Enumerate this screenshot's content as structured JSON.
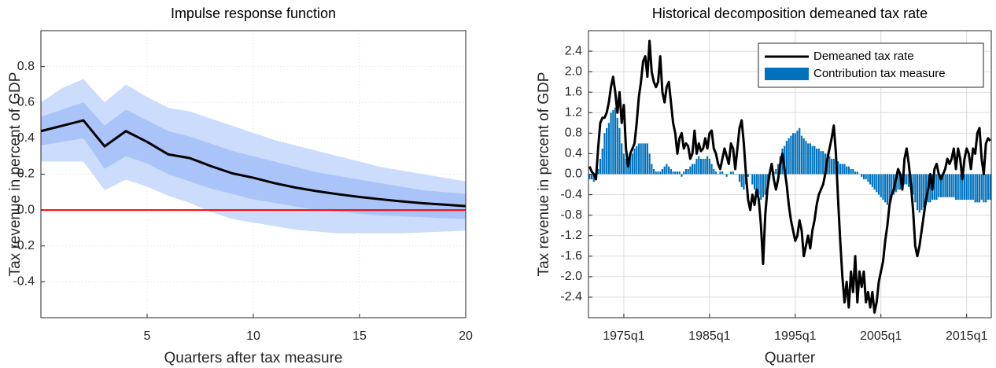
{
  "chart_data": [
    {
      "type": "line",
      "title": "Impulse response function",
      "x_label": "Quarters after tax measure",
      "y_label": "Tax revenue in percent of GDP",
      "x": [
        0,
        1,
        2,
        3,
        4,
        5,
        6,
        7,
        8,
        9,
        10,
        11,
        12,
        13,
        14,
        15,
        16,
        17,
        18,
        19,
        20
      ],
      "series": [
        {
          "color": "#000000",
          "values": [
            0.44,
            0.47,
            0.5,
            0.355,
            0.44,
            0.38,
            0.31,
            0.29,
            0.245,
            0.205,
            0.18,
            0.15,
            0.125,
            0.105,
            0.088,
            0.073,
            0.06,
            0.048,
            0.038,
            0.03,
            0.022
          ]
        }
      ],
      "bands": [
        {
          "color": "#cbdcfc",
          "upper": [
            0.6,
            0.68,
            0.73,
            0.6,
            0.7,
            0.63,
            0.57,
            0.55,
            0.51,
            0.47,
            0.43,
            0.39,
            0.36,
            0.33,
            0.3,
            0.27,
            0.24,
            0.22,
            0.2,
            0.18,
            0.16
          ],
          "lower": [
            0.27,
            0.27,
            0.27,
            0.11,
            0.17,
            0.13,
            0.08,
            0.04,
            -0.01,
            -0.05,
            -0.07,
            -0.09,
            -0.11,
            -0.12,
            -0.13,
            -0.13,
            -0.13,
            -0.13,
            -0.125,
            -0.12,
            -0.115
          ]
        },
        {
          "color": "#aac4f9",
          "upper": [
            0.52,
            0.56,
            0.6,
            0.47,
            0.56,
            0.5,
            0.44,
            0.41,
            0.37,
            0.33,
            0.3,
            0.27,
            0.24,
            0.21,
            0.19,
            0.17,
            0.15,
            0.13,
            0.11,
            0.1,
            0.09
          ],
          "lower": [
            0.36,
            0.38,
            0.4,
            0.23,
            0.3,
            0.26,
            0.2,
            0.16,
            0.12,
            0.09,
            0.06,
            0.04,
            0.02,
            0.0,
            -0.01,
            -0.02,
            -0.03,
            -0.035,
            -0.04,
            -0.045,
            -0.05
          ]
        }
      ],
      "reference_line": {
        "value": 0,
        "color": "#ff0000"
      },
      "xlim": [
        0,
        20
      ],
      "xticks": [
        5,
        10,
        15,
        20
      ],
      "ylim": [
        -0.6,
        1.0
      ],
      "yticks": [
        -0.4,
        -0.2,
        {
          "value": 0,
          "label": "0.0"
        },
        0.2,
        0.4,
        0.6,
        0.8
      ],
      "grid": true,
      "grid_style": "dotted"
    },
    {
      "type": "bar",
      "title": "Historical decomposition demeaned tax rate",
      "x_label": "Quarter",
      "y_label": "Tax revenue in percent of GDP",
      "x": [
        "1971q1",
        "1971q2",
        "1971q3",
        "1971q4",
        "1972q1",
        "1972q2",
        "1972q3",
        "1972q4",
        "1973q1",
        "1973q2",
        "1973q3",
        "1973q4",
        "1974q1",
        "1974q2",
        "1974q3",
        "1974q4",
        "1975q1",
        "1975q2",
        "1975q3",
        "1975q4",
        "1976q1",
        "1976q2",
        "1976q3",
        "1976q4",
        "1977q1",
        "1977q2",
        "1977q3",
        "1977q4",
        "1978q1",
        "1978q2",
        "1978q3",
        "1978q4",
        "1979q1",
        "1979q2",
        "1979q3",
        "1979q4",
        "1980q1",
        "1980q2",
        "1980q3",
        "1980q4",
        "1981q1",
        "1981q2",
        "1981q3",
        "1981q4",
        "1982q1",
        "1982q2",
        "1982q3",
        "1982q4",
        "1983q1",
        "1983q2",
        "1983q3",
        "1983q4",
        "1984q1",
        "1984q2",
        "1984q3",
        "1984q4",
        "1985q1",
        "1985q2",
        "1985q3",
        "1985q4",
        "1986q1",
        "1986q2",
        "1986q3",
        "1986q4",
        "1987q1",
        "1987q2",
        "1987q3",
        "1987q4",
        "1988q1",
        "1988q2",
        "1988q3",
        "1988q4",
        "1989q1",
        "1989q2",
        "1989q3",
        "1989q4",
        "1990q1",
        "1990q2",
        "1990q3",
        "1990q4",
        "1991q1",
        "1991q2",
        "1991q3",
        "1991q4",
        "1992q1",
        "1992q2",
        "1992q3",
        "1992q4",
        "1993q1",
        "1993q2",
        "1993q3",
        "1993q4",
        "1994q1",
        "1994q2",
        "1994q3",
        "1994q4",
        "1995q1",
        "1995q2",
        "1995q3",
        "1995q4",
        "1996q1",
        "1996q2",
        "1996q3",
        "1996q4",
        "1997q1",
        "1997q2",
        "1997q3",
        "1997q4",
        "1998q1",
        "1998q2",
        "1998q3",
        "1998q4",
        "1999q1",
        "1999q2",
        "1999q3",
        "1999q4",
        "2000q1",
        "2000q2",
        "2000q3",
        "2000q4",
        "2001q1",
        "2001q2",
        "2001q3",
        "2001q4",
        "2002q1",
        "2002q2",
        "2002q3",
        "2002q4",
        "2003q1",
        "2003q2",
        "2003q3",
        "2003q4",
        "2004q1",
        "2004q2",
        "2004q3",
        "2004q4",
        "2005q1",
        "2005q2",
        "2005q3",
        "2005q4",
        "2006q1",
        "2006q2",
        "2006q3",
        "2006q4",
        "2007q1",
        "2007q2",
        "2007q3",
        "2007q4",
        "2008q1",
        "2008q2",
        "2008q3",
        "2008q4",
        "2009q1",
        "2009q2",
        "2009q3",
        "2009q4",
        "2010q1",
        "2010q2",
        "2010q3",
        "2010q4",
        "2011q1",
        "2011q2",
        "2011q3",
        "2011q4",
        "2012q1",
        "2012q2",
        "2012q3",
        "2012q4",
        "2013q1",
        "2013q2",
        "2013q3",
        "2013q4",
        "2014q1",
        "2014q2",
        "2014q3",
        "2014q4",
        "2015q1",
        "2015q2",
        "2015q3",
        "2015q4",
        "2016q1",
        "2016q2",
        "2016q3",
        "2016q4",
        "2017q1",
        "2017q2",
        "2017q3",
        "2017q4"
      ],
      "series": [
        {
          "name": "Contribution tax measure",
          "type": "bar",
          "color": "#0072bd",
          "values": [
            -0.1,
            -0.1,
            -0.15,
            -0.1,
            0.1,
            0.3,
            0.5,
            0.8,
            0.9,
            1.0,
            1.2,
            1.25,
            1.3,
            1.1,
            0.9,
            0.6,
            0.4,
            0.3,
            0.3,
            0.4,
            0.4,
            0.5,
            0.55,
            0.6,
            0.6,
            0.6,
            0.6,
            0.6,
            0.4,
            0.2,
            0.1,
            0.05,
            0.05,
            0.05,
            0.1,
            0.15,
            0.2,
            0.15,
            0.1,
            0.05,
            0.05,
            0.05,
            0.05,
            -0.05,
            0.05,
            0.1,
            0.1,
            0.15,
            0.2,
            0.2,
            0.3,
            0.35,
            0.3,
            0.3,
            0.3,
            0.35,
            0.3,
            0.2,
            0.1,
            0.05,
            0.0,
            0.05,
            0.05,
            0.0,
            -0.05,
            0.0,
            0.05,
            0.05,
            0.0,
            0.0,
            -0.15,
            -0.25,
            -0.3,
            -0.2,
            -0.05,
            0.0,
            -0.2,
            -0.3,
            -0.35,
            -0.4,
            -0.5,
            -0.45,
            -0.4,
            -0.3,
            -0.1,
            0.0,
            0.05,
            0.1,
            0.2,
            0.35,
            0.5,
            0.55,
            0.65,
            0.7,
            0.75,
            0.8,
            0.8,
            0.85,
            0.9,
            0.75,
            0.7,
            0.65,
            0.6,
            0.6,
            0.55,
            0.55,
            0.5,
            0.5,
            0.45,
            0.45,
            0.4,
            0.4,
            0.35,
            0.3,
            0.3,
            0.25,
            0.25,
            0.2,
            0.2,
            0.2,
            0.15,
            0.15,
            0.1,
            0.1,
            0.05,
            0.05,
            0.0,
            -0.05,
            -0.1,
            -0.1,
            -0.15,
            -0.2,
            -0.25,
            -0.3,
            -0.35,
            -0.4,
            -0.45,
            -0.5,
            -0.55,
            -0.6,
            -0.6,
            -0.45,
            -0.4,
            -0.35,
            -0.3,
            -0.3,
            -0.25,
            -0.2,
            -0.2,
            -0.25,
            -0.3,
            -0.4,
            -0.55,
            -0.7,
            -0.75,
            -0.7,
            -0.65,
            -0.6,
            -0.55,
            -0.55,
            -0.5,
            -0.5,
            -0.5,
            -0.45,
            -0.45,
            -0.45,
            -0.45,
            -0.45,
            -0.45,
            -0.45,
            -0.45,
            -0.5,
            -0.5,
            -0.5,
            -0.5,
            -0.5,
            -0.5,
            -0.5,
            -0.5,
            -0.5,
            -0.55,
            -0.55,
            -0.55,
            -0.5,
            -0.55,
            -0.55,
            -0.5,
            -0.5
          ]
        },
        {
          "name": "Demeaned tax rate",
          "type": "line",
          "color": "#000000",
          "values": [
            0.15,
            0.05,
            0.0,
            -0.1,
            0.5,
            1.0,
            1.1,
            1.1,
            1.2,
            1.4,
            1.7,
            1.9,
            1.6,
            1.2,
            1.6,
            1.0,
            1.35,
            0.5,
            0.15,
            0.4,
            0.5,
            0.6,
            1.0,
            1.5,
            1.8,
            2.2,
            2.3,
            1.9,
            2.6,
            2.0,
            1.8,
            1.7,
            1.8,
            2.3,
            1.6,
            1.4,
            1.7,
            1.8,
            1.4,
            1.0,
            0.8,
            0.4,
            0.7,
            0.8,
            0.5,
            0.6,
            0.55,
            0.3,
            0.4,
            0.85,
            0.4,
            0.6,
            0.45,
            0.5,
            0.7,
            0.5,
            0.8,
            0.85,
            0.5,
            0.4,
            0.2,
            0.1,
            0.3,
            0.5,
            0.35,
            0.2,
            0.6,
            0.5,
            0.1,
            0.5,
            0.9,
            1.05,
            0.6,
            0.0,
            -0.5,
            -0.7,
            -0.4,
            -0.6,
            -0.3,
            -0.5,
            -1.0,
            -1.75,
            -0.8,
            -0.3,
            0.0,
            0.2,
            -0.1,
            -0.3,
            -0.1,
            0.2,
            0.4,
            0.1,
            -0.2,
            -0.6,
            -0.9,
            -1.1,
            -1.3,
            -1.2,
            -0.9,
            -1.1,
            -1.6,
            -1.4,
            -1.2,
            -1.45,
            -1.1,
            -0.9,
            -0.6,
            -0.4,
            -0.3,
            -0.2,
            0.0,
            0.3,
            0.5,
            0.7,
            0.95,
            0.4,
            -0.5,
            -1.3,
            -2.0,
            -2.5,
            -2.1,
            -2.6,
            -1.9,
            -2.3,
            -1.6,
            -2.5,
            -1.9,
            -2.2,
            -1.9,
            -2.5,
            -2.3,
            -2.6,
            -2.3,
            -2.7,
            -2.5,
            -2.1,
            -1.9,
            -1.7,
            -1.3,
            -1.0,
            -0.6,
            -0.4,
            -0.3,
            -0.1,
            0.1,
            0.0,
            -0.3,
            0.3,
            0.5,
            0.2,
            -0.2,
            -0.7,
            -1.4,
            -1.6,
            -1.4,
            -1.1,
            -0.8,
            -0.5,
            -0.3,
            0.0,
            -0.3,
            0.1,
            0.2,
            0.0,
            -0.1,
            0.0,
            0.1,
            0.3,
            0.2,
            0.3,
            0.5,
            0.1,
            0.5,
            0.3,
            -0.1,
            0.3,
            0.5,
            0.4,
            0.1,
            0.5,
            0.4,
            0.8,
            0.9,
            0.3,
            0.0,
            0.6,
            0.7,
            0.65
          ]
        }
      ],
      "xticks": [
        "1975q1",
        "1985q1",
        "1995q1",
        "2005q1",
        "2015q1"
      ],
      "ylim": [
        -2.8,
        2.8
      ],
      "yticks": [
        -2.4,
        {
          "value": -2,
          "label": "-2.0"
        },
        -1.6,
        -1.2,
        -0.8,
        -0.4,
        {
          "value": 0,
          "label": "0.0"
        },
        0.4,
        0.8,
        1.2,
        1.6,
        {
          "value": 2,
          "label": "2.0"
        },
        2.4
      ],
      "grid": true,
      "grid_style": "solid",
      "legend": "top-right"
    }
  ]
}
